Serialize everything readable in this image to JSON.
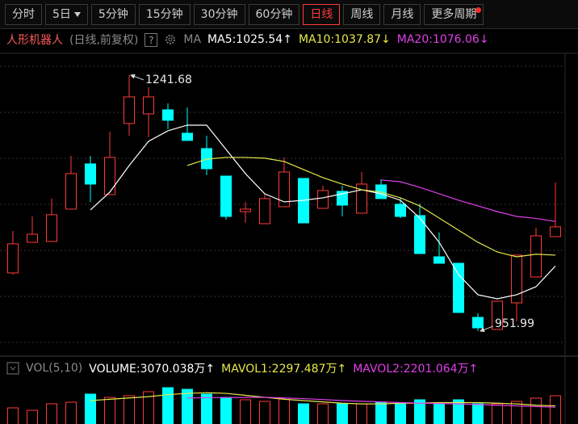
{
  "toolbar": {
    "tabs": [
      "分时",
      "5日",
      "5分钟",
      "15分钟",
      "30分钟",
      "60分钟",
      "日线",
      "周线",
      "月线",
      "更多周期"
    ],
    "active": 6
  },
  "chart_data": [
    {
      "type": "candlestick",
      "title": "人形机器人",
      "subtitle": "(日线,前复权)",
      "help": "?",
      "indicator": "MA",
      "annotations": {
        "high_label": "1241.68",
        "low_label": "951.99"
      },
      "up_color": "#ff3a3a",
      "down_color": "#00ffff",
      "categories": [
        null,
        null,
        null,
        null,
        null,
        null,
        null,
        null,
        null,
        null,
        null,
        null,
        null,
        null,
        null,
        null,
        null,
        null,
        null,
        null,
        null,
        null,
        null,
        null,
        null,
        null,
        null,
        null,
        null
      ],
      "open": [
        1017.8,
        1052.5,
        1053.4,
        1090.0,
        1141.2,
        1106.4,
        1186.9,
        1197.8,
        1202.4,
        1175.9,
        1158.5,
        1127.4,
        1087.2,
        1073.5,
        1092.7,
        1124.7,
        1090.9,
        1110.1,
        1085.4,
        1117.4,
        1095.5,
        1082.7,
        1036.0,
        1028.7,
        967.5,
        953.8,
        983.9,
        1013.2,
        1058.9
      ],
      "high": [
        1065.3,
        1081.7,
        1101.9,
        1150.3,
        1150.3,
        1177.7,
        1241.68,
        1228.0,
        1209.7,
        1205.1,
        1173.1,
        1127.4,
        1098.2,
        1107.3,
        1148.5,
        1124.7,
        1116.5,
        1116.5,
        1132.0,
        1123.8,
        1102.8,
        1096.4,
        1063.5,
        1028.7,
        972.1,
        985.8,
        1037.9,
        1069.0,
        1120.1
      ],
      "low": [
        1015.9,
        1052.5,
        1053.4,
        1090.0,
        1098.2,
        1106.4,
        1173.1,
        1171.3,
        1180.5,
        1167.7,
        1128.4,
        1078.1,
        1074.4,
        1073.5,
        1092.7,
        1074.4,
        1090.9,
        1081.7,
        1085.4,
        1101.9,
        1079.9,
        1039.7,
        1028.7,
        973.0,
        951.99,
        953.8,
        962.9,
        1013.2,
        1058.9
      ],
      "close": [
        1050.7,
        1061.6,
        1083.6,
        1130.2,
        1118.3,
        1148.5,
        1217.0,
        1217.0,
        1190.5,
        1167.7,
        1135.7,
        1081.7,
        1090.0,
        1101.9,
        1132.0,
        1074.4,
        1111.0,
        1094.5,
        1118.3,
        1101.9,
        1081.7,
        1039.7,
        1028.7,
        973.0,
        955.6,
        985.8,
        1037.9,
        1059.8,
        1069.9
      ],
      "ylim": [
        924.5,
        1251.7
      ],
      "series": [
        {
          "name": "MA5:1025.54↑",
          "color": "#ffffff",
          "values": [
            null,
            null,
            null,
            null,
            1089.1,
            1109.2,
            1139.3,
            1166.7,
            1178.6,
            1185.0,
            1185.0,
            1157.6,
            1130.2,
            1107.3,
            1098.2,
            1100.0,
            1102.8,
            1107.3,
            1111.9,
            1107.3,
            1100.0,
            1079.9,
            1052.5,
            1015.9,
            993.1,
            988.5,
            993.1,
            1002.2,
            1025.54
          ]
        },
        {
          "name": "MA10:1037.87↓",
          "color": "#e8e84a",
          "values": [
            null,
            null,
            null,
            null,
            null,
            null,
            null,
            null,
            null,
            1139.3,
            1146.6,
            1148.5,
            1148.5,
            1147.6,
            1143.9,
            1134.8,
            1125.6,
            1118.3,
            1111.9,
            1109.2,
            1102.8,
            1093.6,
            1079.9,
            1066.2,
            1052.5,
            1041.5,
            1036.0,
            1039.0,
            1037.87
          ]
        },
        {
          "name": "MA20:1076.06↓",
          "color": "#e040e8",
          "values": [
            null,
            null,
            null,
            null,
            null,
            null,
            null,
            null,
            null,
            null,
            null,
            null,
            null,
            null,
            null,
            null,
            null,
            null,
            null,
            1122.9,
            1121.0,
            1114.7,
            1107.3,
            1100.0,
            1093.6,
            1087.2,
            1081.7,
            1079.5,
            1076.06
          ]
        }
      ]
    },
    {
      "type": "bar",
      "title": "VOL(5,10)",
      "ylim": [
        0,
        4298
      ],
      "volume_label": "VOLUME:3070.038万↑",
      "volume_color": "#ffffff",
      "values": [
        2149,
        1965,
        2456,
        2579,
        3193,
        2947,
        3070,
        3377,
        3684,
        3561,
        3193,
        2947,
        2763,
        2640,
        2886,
        2456,
        2456,
        2456,
        2456,
        2579,
        2456,
        2763,
        2456,
        2763,
        2456,
        2456,
        2640,
        2886,
        3070.038
      ],
      "series": [
        {
          "name": "MAVOL1:2297.487万↑",
          "color": "#e8e84a",
          "values": [
            null,
            null,
            null,
            null,
            2700,
            2800,
            2900,
            3000,
            3150,
            3250,
            3300,
            3250,
            3100,
            2950,
            2800,
            2700,
            2600,
            2500,
            2450,
            2450,
            2500,
            2500,
            2550,
            2550,
            2550,
            2500,
            2450,
            2350,
            2297.487
          ]
        },
        {
          "name": "MAVOL2:2201.064万↑",
          "color": "#e040e8",
          "values": [
            null,
            null,
            null,
            null,
            null,
            null,
            null,
            null,
            null,
            2900,
            2920,
            2930,
            2940,
            2950,
            2900,
            2850,
            2780,
            2700,
            2650,
            2600,
            2550,
            2500,
            2480,
            2450,
            2400,
            2350,
            2300,
            2250,
            2201.064
          ]
        }
      ]
    }
  ]
}
